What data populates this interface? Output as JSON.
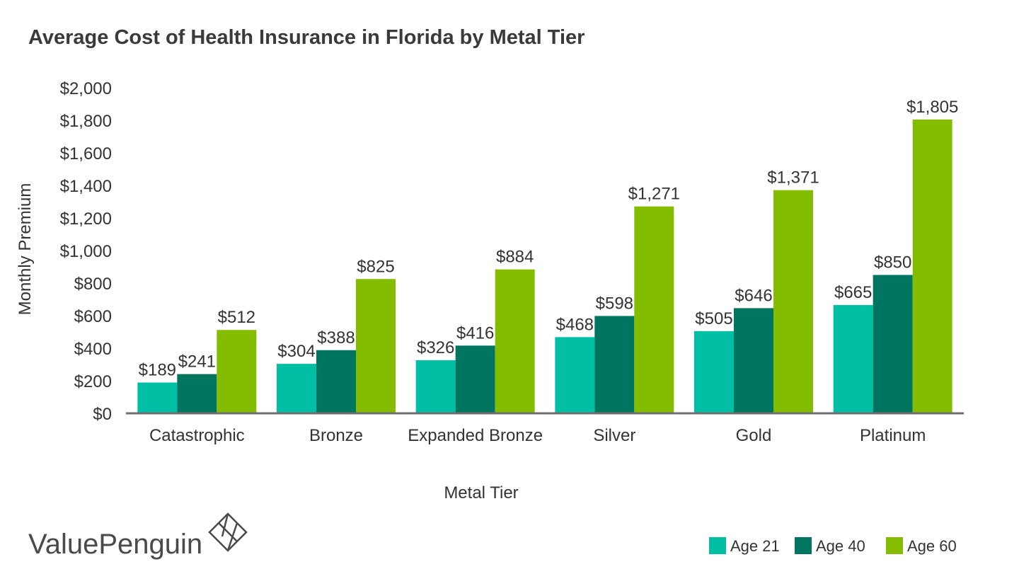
{
  "brand": {
    "name": "ValuePenguin",
    "icon": "penguin-diamond-logo-icon"
  },
  "colors": {
    "age21": "#00bfa5",
    "age40": "#007560",
    "age60": "#84bd00",
    "axis": "#6f6f6f",
    "text": "#333333"
  },
  "chart_data": {
    "type": "bar",
    "title": "Average Cost of Health Insurance in Florida by Metal Tier",
    "xlabel": "Metal Tier",
    "ylabel": "Monthly Premium",
    "ylim": [
      0,
      2000
    ],
    "yticks": [
      0,
      200,
      400,
      600,
      800,
      1000,
      1200,
      1400,
      1600,
      1800,
      2000
    ],
    "ytick_labels": [
      "$0",
      "$200",
      "$400",
      "$600",
      "$800",
      "$1,000",
      "$1,200",
      "$1,400",
      "$1,600",
      "$1,800",
      "$2,000"
    ],
    "grid": false,
    "legend_position": "bottom-right",
    "categories": [
      "Catastrophic",
      "Bronze",
      "Expanded Bronze",
      "Silver",
      "Gold",
      "Platinum"
    ],
    "series": [
      {
        "name": "Age 21",
        "color": "#00bfa5",
        "values": [
          189,
          304,
          326,
          468,
          505,
          665
        ],
        "labels": [
          "$189",
          "$304",
          "$326",
          "$468",
          "$505",
          "$665"
        ]
      },
      {
        "name": "Age 40",
        "color": "#007560",
        "values": [
          241,
          388,
          416,
          598,
          646,
          850
        ],
        "labels": [
          "$241",
          "$388",
          "$416",
          "$598",
          "$646",
          "$850"
        ]
      },
      {
        "name": "Age 60",
        "color": "#84bd00",
        "values": [
          512,
          825,
          884,
          1271,
          1371,
          1805
        ],
        "labels": [
          "$512",
          "$825",
          "$884",
          "$1,271",
          "$1,371",
          "$1,805"
        ]
      }
    ]
  }
}
